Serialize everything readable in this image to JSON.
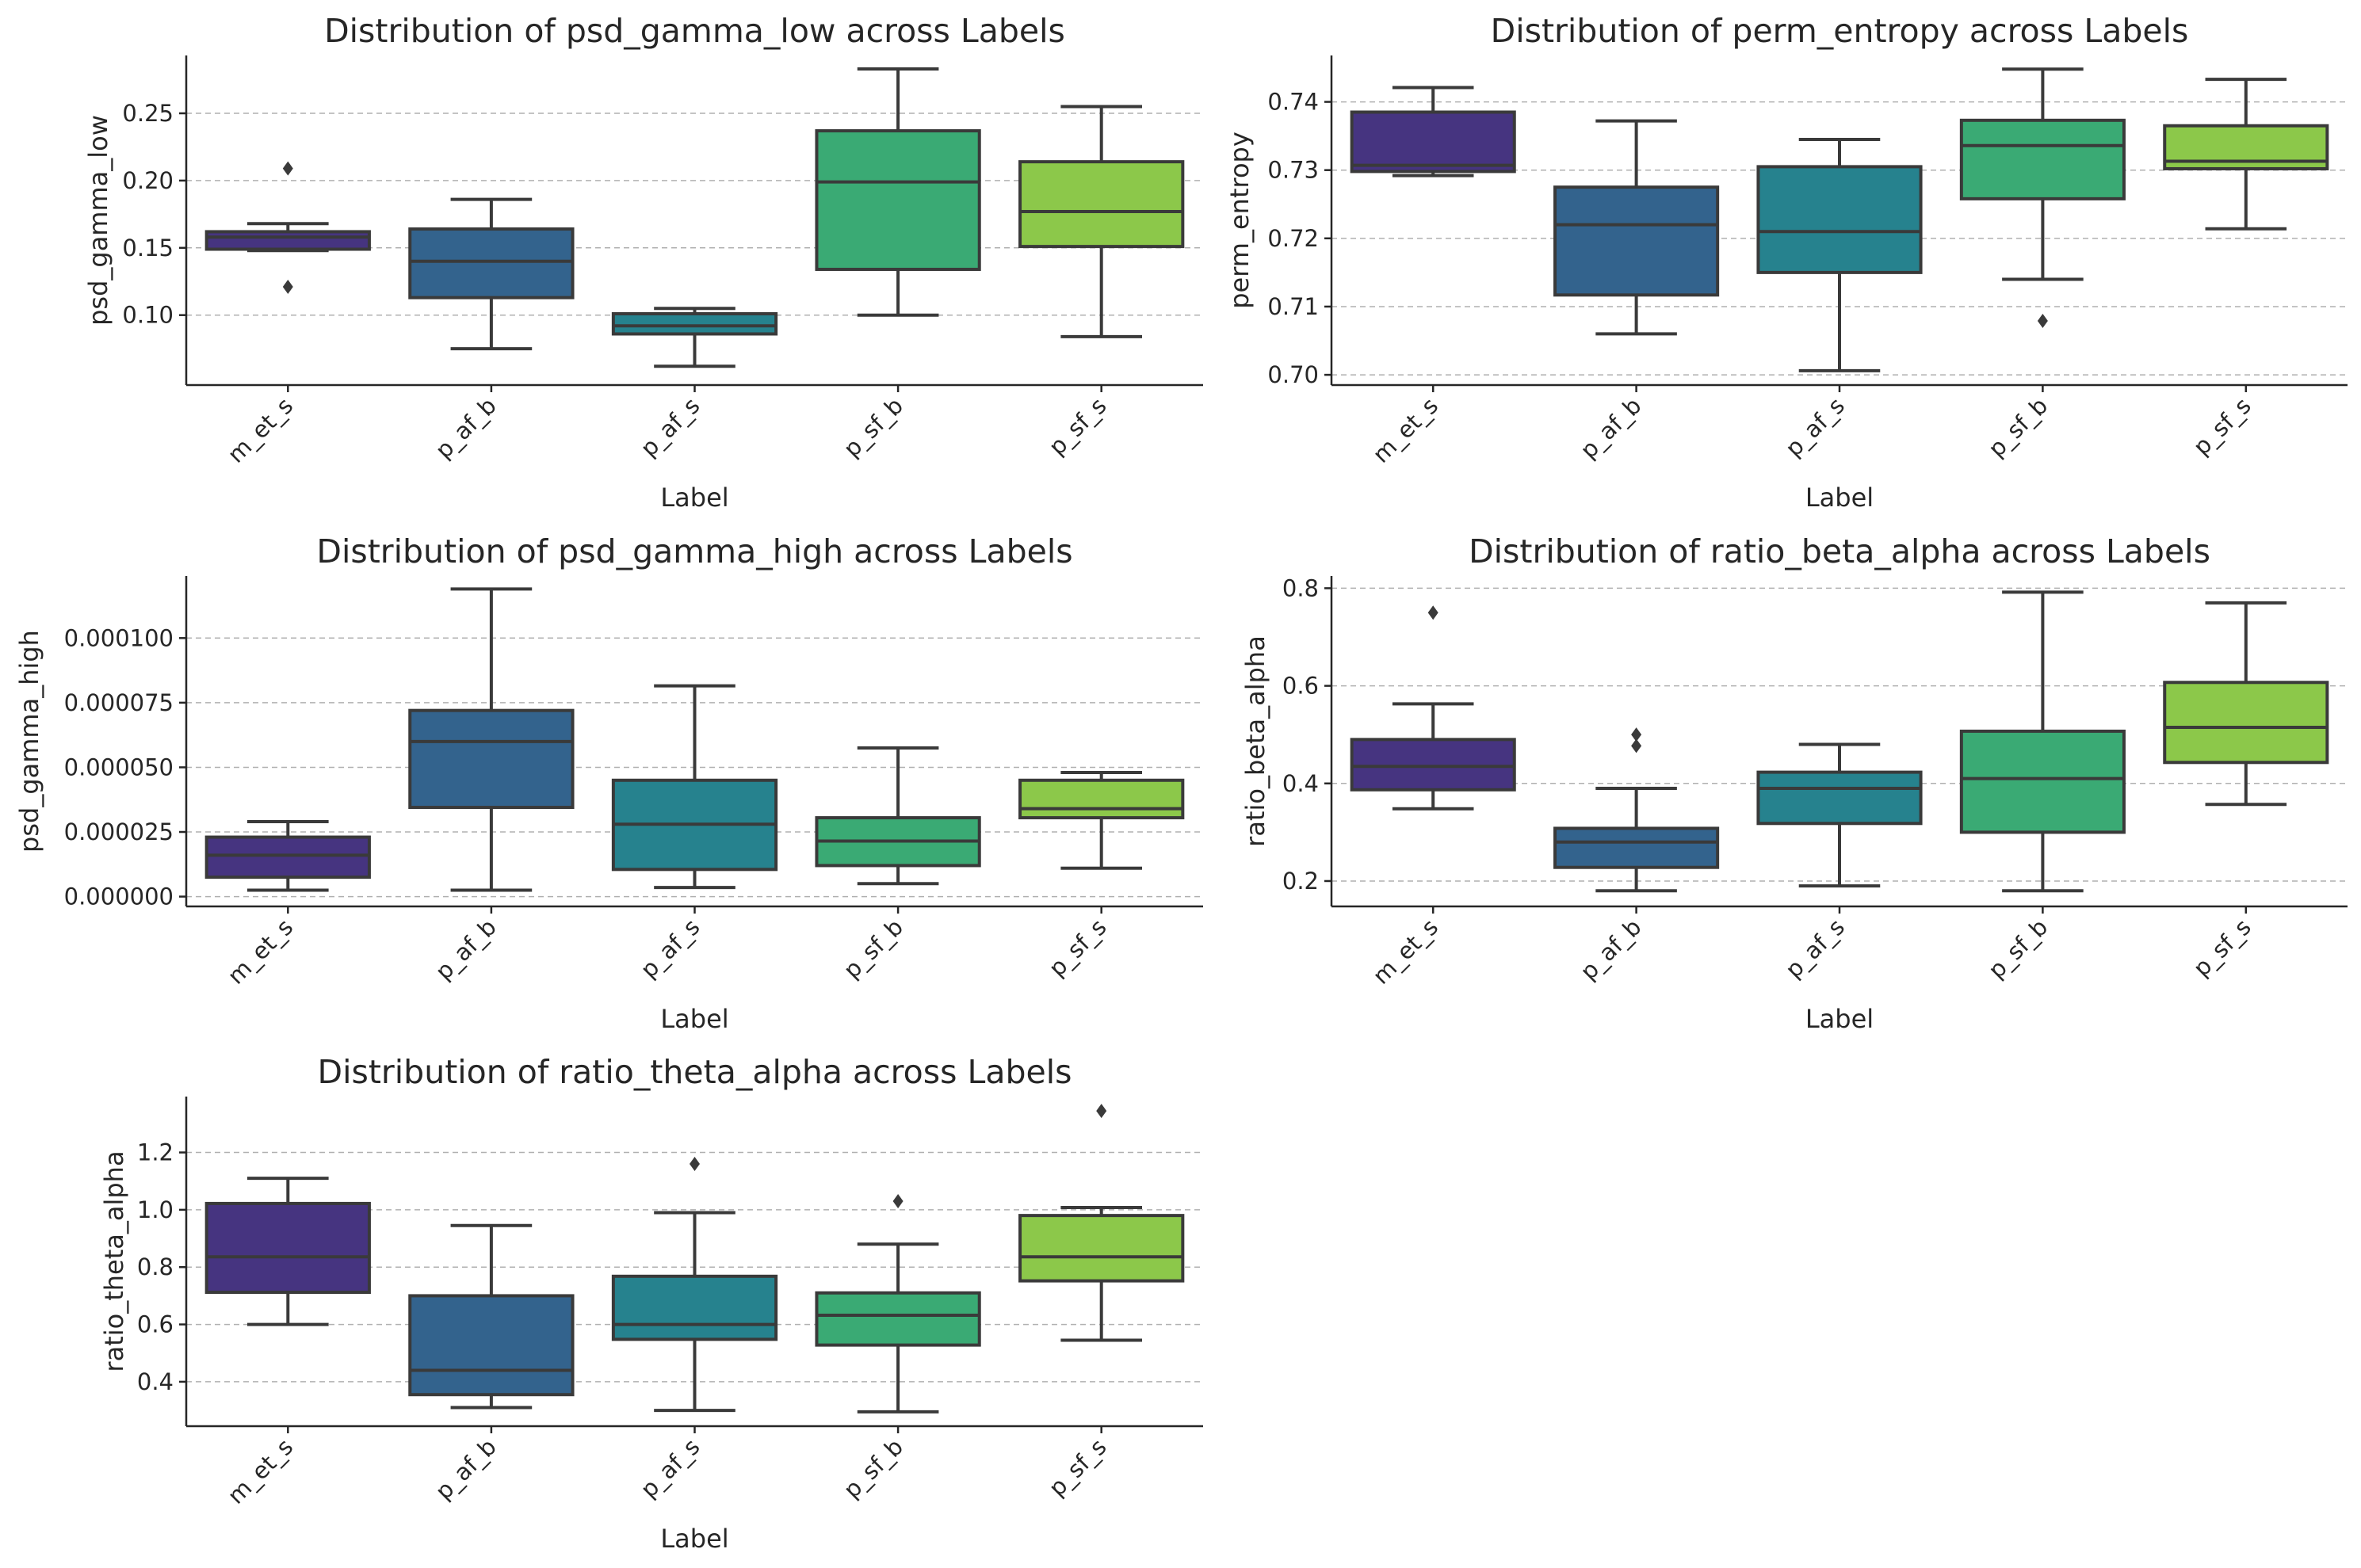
{
  "colors": {
    "m_et_s": "#463480",
    "p_af_b": "#33638d",
    "p_af_s": "#26828e",
    "p_sf_b": "#3aaa74",
    "p_sf_s": "#8cc84a",
    "box_edge": "#3a3a3a",
    "grid": "#b0b0b0",
    "text": "#262626"
  },
  "chart_data": [
    {
      "type": "box",
      "title": "Distribution of psd_gamma_low across Labels",
      "xlabel": "Label",
      "ylabel": "psd_gamma_low",
      "categories": [
        "m_et_s",
        "p_af_b",
        "p_af_s",
        "p_sf_b",
        "p_sf_s"
      ],
      "ylim": [
        0.048,
        0.293
      ],
      "yticks": [
        0.1,
        0.15,
        0.2,
        0.25
      ],
      "ytick_labels": [
        "0.10",
        "0.15",
        "0.20",
        "0.25"
      ],
      "boxes": [
        {
          "min": 0.148,
          "q1": 0.149,
          "median": 0.158,
          "q3": 0.162,
          "max": 0.168,
          "outliers": [
            0.209,
            0.121
          ]
        },
        {
          "min": 0.075,
          "q1": 0.113,
          "median": 0.14,
          "q3": 0.164,
          "max": 0.186,
          "outliers": []
        },
        {
          "min": 0.062,
          "q1": 0.086,
          "median": 0.092,
          "q3": 0.101,
          "max": 0.105,
          "outliers": []
        },
        {
          "min": 0.1,
          "q1": 0.134,
          "median": 0.199,
          "q3": 0.237,
          "max": 0.283,
          "outliers": []
        },
        {
          "min": 0.084,
          "q1": 0.151,
          "median": 0.177,
          "q3": 0.214,
          "max": 0.255,
          "outliers": []
        }
      ]
    },
    {
      "type": "box",
      "title": "Distribution of perm_entropy across Labels",
      "xlabel": "Label",
      "ylabel": "perm_entropy",
      "categories": [
        "m_et_s",
        "p_af_b",
        "p_af_s",
        "p_sf_b",
        "p_sf_s"
      ],
      "ylim": [
        0.6985,
        0.7468
      ],
      "yticks": [
        0.7,
        0.71,
        0.72,
        0.73,
        0.74
      ],
      "ytick_labels": [
        "0.70",
        "0.71",
        "0.72",
        "0.73",
        "0.74"
      ],
      "boxes": [
        {
          "min": 0.7292,
          "q1": 0.7298,
          "median": 0.7307,
          "q3": 0.7385,
          "max": 0.7421,
          "outliers": []
        },
        {
          "min": 0.706,
          "q1": 0.7117,
          "median": 0.722,
          "q3": 0.7275,
          "max": 0.7372,
          "outliers": []
        },
        {
          "min": 0.7006,
          "q1": 0.715,
          "median": 0.721,
          "q3": 0.7305,
          "max": 0.7345,
          "outliers": []
        },
        {
          "min": 0.714,
          "q1": 0.7258,
          "median": 0.7336,
          "q3": 0.7373,
          "max": 0.7448,
          "outliers": [
            0.7079
          ]
        },
        {
          "min": 0.7214,
          "q1": 0.7302,
          "median": 0.7313,
          "q3": 0.7365,
          "max": 0.7433,
          "outliers": []
        }
      ]
    },
    {
      "type": "box",
      "title": "Distribution of psd_gamma_high across Labels",
      "xlabel": "Label",
      "ylabel": "psd_gamma_high",
      "categories": [
        "m_et_s",
        "p_af_b",
        "p_af_s",
        "p_sf_b",
        "p_sf_s"
      ],
      "ylim": [
        -3.8e-06,
        0.000124
      ],
      "yticks": [
        0,
        2.5e-05,
        5e-05,
        7.5e-05,
        0.0001
      ],
      "ytick_labels": [
        "0.000000",
        "0.000025",
        "0.000050",
        "0.000075",
        "0.000100"
      ],
      "boxes": [
        {
          "min": 2.5e-06,
          "q1": 7.5e-06,
          "median": 1.6e-05,
          "q3": 2.3e-05,
          "max": 2.9e-05,
          "outliers": []
        },
        {
          "min": 2.5e-06,
          "q1": 3.45e-05,
          "median": 6e-05,
          "q3": 7.2e-05,
          "max": 0.000119,
          "outliers": []
        },
        {
          "min": 3.5e-06,
          "q1": 1.05e-05,
          "median": 2.8e-05,
          "q3": 4.5e-05,
          "max": 8.15e-05,
          "outliers": []
        },
        {
          "min": 5e-06,
          "q1": 1.2e-05,
          "median": 2.15e-05,
          "q3": 3.05e-05,
          "max": 5.75e-05,
          "outliers": []
        },
        {
          "min": 1.1e-05,
          "q1": 3.05e-05,
          "median": 3.4e-05,
          "q3": 4.5e-05,
          "max": 4.8e-05,
          "outliers": []
        }
      ]
    },
    {
      "type": "box",
      "title": "Distribution of ratio_beta_alpha across Labels",
      "xlabel": "Label",
      "ylabel": "ratio_beta_alpha",
      "categories": [
        "m_et_s",
        "p_af_b",
        "p_af_s",
        "p_sf_b",
        "p_sf_s"
      ],
      "ylim": [
        0.148,
        0.825
      ],
      "yticks": [
        0.2,
        0.4,
        0.6,
        0.8
      ],
      "ytick_labels": [
        "0.2",
        "0.4",
        "0.6",
        "0.8"
      ],
      "boxes": [
        {
          "min": 0.348,
          "q1": 0.387,
          "median": 0.435,
          "q3": 0.49,
          "max": 0.563,
          "outliers": [
            0.75
          ]
        },
        {
          "min": 0.18,
          "q1": 0.228,
          "median": 0.28,
          "q3": 0.308,
          "max": 0.39,
          "outliers": [
            0.5,
            0.477
          ]
        },
        {
          "min": 0.19,
          "q1": 0.318,
          "median": 0.39,
          "q3": 0.423,
          "max": 0.48,
          "outliers": []
        },
        {
          "min": 0.18,
          "q1": 0.3,
          "median": 0.41,
          "q3": 0.507,
          "max": 0.792,
          "outliers": []
        },
        {
          "min": 0.357,
          "q1": 0.443,
          "median": 0.515,
          "q3": 0.607,
          "max": 0.77,
          "outliers": []
        }
      ]
    },
    {
      "type": "box",
      "title": "Distribution of ratio_theta_alpha across Labels",
      "xlabel": "Label",
      "ylabel": "ratio_theta_alpha",
      "categories": [
        "m_et_s",
        "p_af_b",
        "p_af_s",
        "p_sf_b",
        "p_sf_s"
      ],
      "ylim": [
        0.245,
        1.395
      ],
      "yticks": [
        0.4,
        0.6,
        0.8,
        1.0,
        1.2
      ],
      "ytick_labels": [
        "0.4",
        "0.6",
        "0.8",
        "1.0",
        "1.2"
      ],
      "boxes": [
        {
          "min": 0.6,
          "q1": 0.712,
          "median": 0.836,
          "q3": 1.022,
          "max": 1.11,
          "outliers": []
        },
        {
          "min": 0.31,
          "q1": 0.355,
          "median": 0.44,
          "q3": 0.7,
          "max": 0.945,
          "outliers": []
        },
        {
          "min": 0.3,
          "q1": 0.548,
          "median": 0.6,
          "q3": 0.768,
          "max": 0.99,
          "outliers": [
            1.16
          ]
        },
        {
          "min": 0.295,
          "q1": 0.528,
          "median": 0.632,
          "q3": 0.71,
          "max": 0.88,
          "outliers": [
            1.03
          ]
        },
        {
          "min": 0.545,
          "q1": 0.752,
          "median": 0.836,
          "q3": 0.98,
          "max": 1.008,
          "outliers": [
            1.345
          ]
        }
      ]
    }
  ]
}
